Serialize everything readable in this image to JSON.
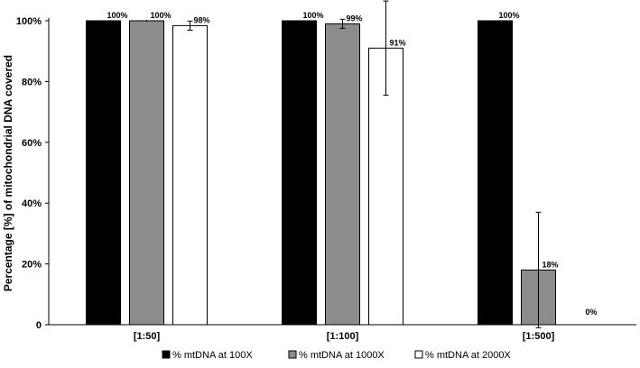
{
  "chart_data": {
    "type": "bar",
    "categories": [
      "[1:50]",
      "[1:100]",
      "[1:500]"
    ],
    "ylabel": "Percentage [%] of mitochondrial DNA covered",
    "xlabel": "",
    "ylim": [
      0,
      100
    ],
    "yticks": [
      0,
      20,
      40,
      60,
      80,
      100
    ],
    "ytick_labels": [
      "0",
      "20%",
      "40%",
      "60%",
      "80%",
      "100%"
    ],
    "legend_position": "bottom",
    "series": [
      {
        "name": "% mtDNA at 100X",
        "color": "#000000",
        "values": [
          100,
          100,
          100
        ],
        "errors": [
          0,
          0,
          0
        ],
        "labels": [
          "100%",
          "100%",
          "100%"
        ]
      },
      {
        "name": "% mtDNA at 1000X",
        "color": "#8c8c8c",
        "values": [
          100,
          99,
          18
        ],
        "errors": [
          0.3,
          1.5,
          19
        ],
        "labels": [
          "100%",
          "99%",
          "18%"
        ]
      },
      {
        "name": "% mtDNA at 2000X",
        "color": "#ffffff",
        "values": [
          98.4,
          91,
          0
        ],
        "errors": [
          1.5,
          15.5,
          0
        ],
        "labels": [
          "98%",
          "91%",
          "0%"
        ]
      }
    ]
  }
}
